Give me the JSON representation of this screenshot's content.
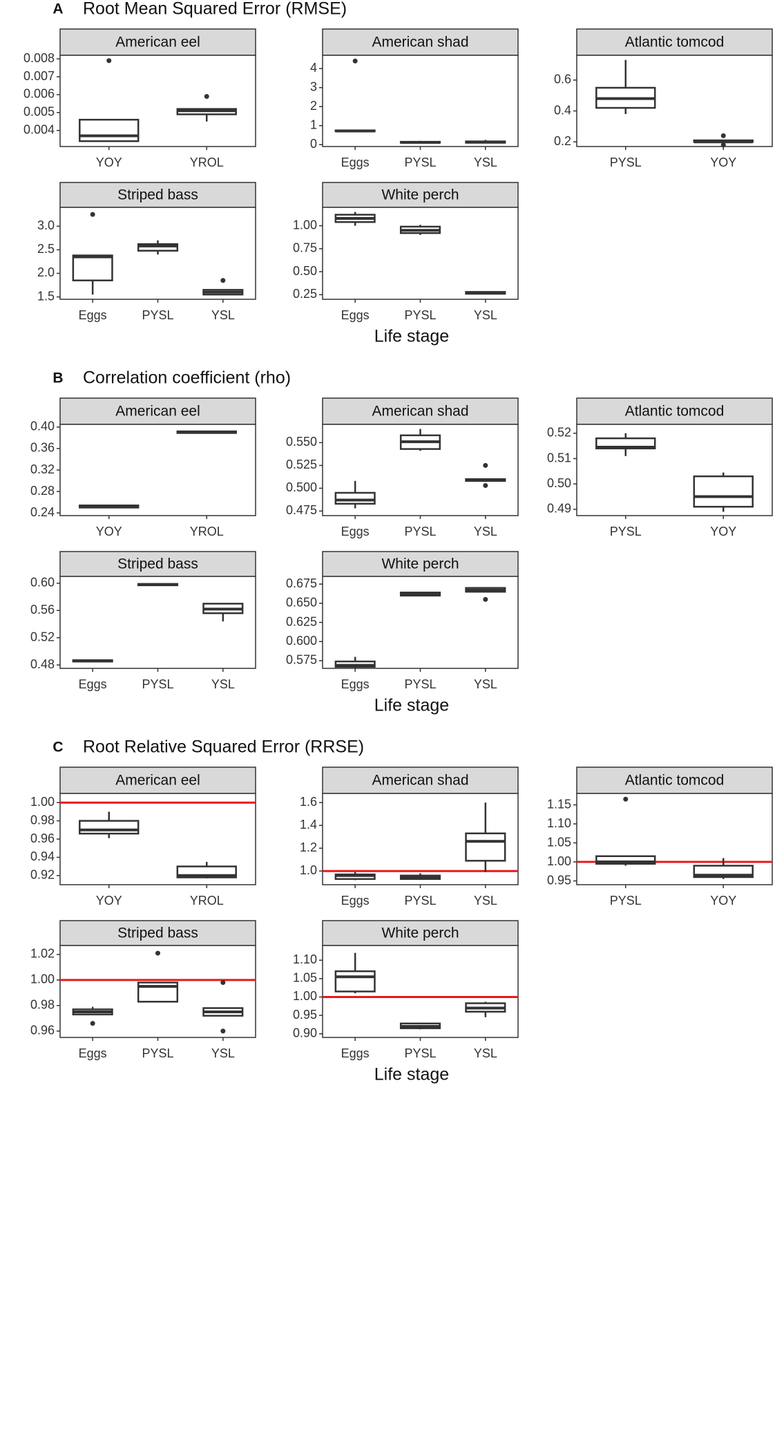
{
  "chart_data": [
    {
      "type": "box",
      "label": "A",
      "title": "Root Mean Squared Error (RMSE)",
      "xlabel": "Life stage",
      "box_color": "#333333",
      "strip_color": "#d9d9d9",
      "panels": [
        {
          "title": "American eel",
          "categories": [
            "YOY",
            "YROL"
          ],
          "ylim": [
            0.0031,
            0.0082
          ],
          "yticks": [
            0.004,
            0.005,
            0.006,
            0.007,
            0.008
          ],
          "boxes": [
            {
              "min": 0.0034,
              "q1": 0.0034,
              "median": 0.0037,
              "q3": 0.0046,
              "max": 0.0046,
              "outliers": [
                0.0079
              ]
            },
            {
              "min": 0.0045,
              "q1": 0.0049,
              "median": 0.0051,
              "q3": 0.0052,
              "max": 0.0052,
              "outliers": [
                0.0059
              ]
            }
          ]
        },
        {
          "title": "American shad",
          "categories": [
            "Eggs",
            "PYSL",
            "YSL"
          ],
          "ylim": [
            -0.1,
            4.7
          ],
          "yticks": [
            0,
            1,
            2,
            3,
            4
          ],
          "boxes": [
            {
              "min": 0.68,
              "q1": 0.7,
              "median": 0.72,
              "q3": 0.75,
              "max": 0.78,
              "outliers": [
                4.4
              ]
            },
            {
              "min": 0.08,
              "q1": 0.1,
              "median": 0.12,
              "q3": 0.15,
              "max": 0.2
            },
            {
              "min": 0.08,
              "q1": 0.1,
              "median": 0.13,
              "q3": 0.17,
              "max": 0.25
            }
          ]
        },
        {
          "title": "Atlantic tomcod",
          "categories": [
            "PYSL",
            "YOY"
          ],
          "ylim": [
            0.17,
            0.76
          ],
          "yticks": [
            0.2,
            0.4,
            0.6
          ],
          "boxes": [
            {
              "min": 0.38,
              "q1": 0.42,
              "median": 0.48,
              "q3": 0.55,
              "max": 0.73
            },
            {
              "min": 0.19,
              "q1": 0.2,
              "median": 0.2,
              "q3": 0.21,
              "max": 0.21,
              "outliers": [
                0.24,
                0.18
              ]
            }
          ]
        },
        {
          "title": "Striped bass",
          "categories": [
            "Eggs",
            "PYSL",
            "YSL"
          ],
          "ylim": [
            1.45,
            3.4
          ],
          "yticks": [
            1.5,
            {
              "value": 2,
              "label": "2.0"
            },
            2.5,
            {
              "value": 3,
              "label": "3.0"
            }
          ],
          "boxes": [
            {
              "min": 1.55,
              "q1": 1.85,
              "median": 2.35,
              "q3": 2.38,
              "max": 2.38,
              "outliers": [
                3.25
              ]
            },
            {
              "min": 2.4,
              "q1": 2.48,
              "median": 2.58,
              "q3": 2.62,
              "max": 2.7
            },
            {
              "min": 1.55,
              "q1": 1.55,
              "median": 1.6,
              "q3": 1.65,
              "max": 1.65,
              "outliers": [
                1.85
              ]
            }
          ]
        },
        {
          "title": "White perch",
          "categories": [
            "Eggs",
            "PYSL",
            "YSL"
          ],
          "ylim": [
            0.2,
            1.2
          ],
          "yticks": [
            0.25,
            {
              "value": 0.5,
              "label": "0.50"
            },
            0.75,
            {
              "value": 1,
              "label": "1.00"
            }
          ],
          "boxes": [
            {
              "min": 1.0,
              "q1": 1.04,
              "median": 1.08,
              "q3": 1.12,
              "max": 1.15
            },
            {
              "min": 0.9,
              "q1": 0.92,
              "median": 0.95,
              "q3": 0.99,
              "max": 1.01
            },
            {
              "min": 0.26,
              "q1": 0.26,
              "median": 0.27,
              "q3": 0.28,
              "max": 0.28
            }
          ]
        }
      ]
    },
    {
      "type": "box",
      "label": "B",
      "title": "Correlation coefficient (rho)",
      "xlabel": "Life stage",
      "box_color": "#333333",
      "strip_color": "#d9d9d9",
      "panels": [
        {
          "title": "American eel",
          "categories": [
            "YOY",
            "YROL"
          ],
          "ylim": [
            0.235,
            0.405
          ],
          "yticks": [
            0.24,
            0.28,
            0.32,
            0.36,
            {
              "value": 0.4,
              "label": "0.40"
            }
          ],
          "boxes": [
            {
              "min": 0.25,
              "q1": 0.25,
              "median": 0.252,
              "q3": 0.254,
              "max": 0.254
            },
            {
              "min": 0.388,
              "q1": 0.389,
              "median": 0.39,
              "q3": 0.392,
              "max": 0.392
            }
          ]
        },
        {
          "title": "American shad",
          "categories": [
            "Eggs",
            "PYSL",
            "YSL"
          ],
          "ylim": [
            0.47,
            0.57
          ],
          "yticks": [
            0.475,
            {
              "value": 0.5,
              "label": "0.500"
            },
            0.525,
            {
              "value": 0.55,
              "label": "0.550"
            }
          ],
          "boxes": [
            {
              "min": 0.478,
              "q1": 0.483,
              "median": 0.487,
              "q3": 0.495,
              "max": 0.508
            },
            {
              "min": 0.541,
              "q1": 0.543,
              "median": 0.551,
              "q3": 0.558,
              "max": 0.565
            },
            {
              "min": 0.507,
              "q1": 0.508,
              "median": 0.509,
              "q3": 0.51,
              "max": 0.51,
              "outliers": [
                0.525,
                0.503
              ]
            }
          ]
        },
        {
          "title": "Atlantic tomcod",
          "categories": [
            "PYSL",
            "YOY"
          ],
          "ylim": [
            0.4875,
            0.5235
          ],
          "yticks": [
            0.49,
            {
              "value": 0.5,
              "label": "0.50"
            },
            0.51,
            0.52
          ],
          "boxes": [
            {
              "min": 0.511,
              "q1": 0.514,
              "median": 0.5145,
              "q3": 0.518,
              "max": 0.52
            },
            {
              "min": 0.489,
              "q1": 0.491,
              "median": 0.495,
              "q3": 0.503,
              "max": 0.5045
            }
          ]
        },
        {
          "title": "Striped bass",
          "categories": [
            "Eggs",
            "PYSL",
            "YSL"
          ],
          "ylim": [
            0.475,
            0.61
          ],
          "yticks": [
            0.48,
            0.52,
            0.56,
            {
              "value": 0.6,
              "label": "0.60"
            }
          ],
          "boxes": [
            {
              "min": 0.484,
              "q1": 0.485,
              "median": 0.486,
              "q3": 0.487,
              "max": 0.488
            },
            {
              "min": 0.596,
              "q1": 0.597,
              "median": 0.598,
              "q3": 0.599,
              "max": 0.6
            },
            {
              "min": 0.544,
              "q1": 0.556,
              "median": 0.562,
              "q3": 0.57,
              "max": 0.57
            }
          ]
        },
        {
          "title": "White perch",
          "categories": [
            "Eggs",
            "PYSL",
            "YSL"
          ],
          "ylim": [
            0.565,
            0.685
          ],
          "yticks": [
            0.575,
            {
              "value": 0.6,
              "label": "0.600"
            },
            0.625,
            {
              "value": 0.65,
              "label": "0.650"
            },
            0.675
          ],
          "boxes": [
            {
              "min": 0.565,
              "q1": 0.567,
              "median": 0.569,
              "q3": 0.574,
              "max": 0.58
            },
            {
              "min": 0.659,
              "q1": 0.66,
              "median": 0.662,
              "q3": 0.664,
              "max": 0.665
            },
            {
              "min": 0.665,
              "q1": 0.665,
              "median": 0.667,
              "q3": 0.67,
              "max": 0.67,
              "outliers": [
                0.655
              ]
            }
          ]
        }
      ]
    },
    {
      "type": "box",
      "label": "C",
      "title": "Root Relative Squared Error (RRSE)",
      "xlabel": "Life stage",
      "box_color": "#333333",
      "strip_color": "#d9d9d9",
      "reference_line": {
        "value": 1,
        "color": "#e8191c"
      },
      "panels": [
        {
          "title": "American eel",
          "categories": [
            "YOY",
            "YROL"
          ],
          "ylim": [
            0.91,
            1.01
          ],
          "yticks": [
            {
              "value": 0.92,
              "label": "0.92"
            },
            0.94,
            0.96,
            0.98,
            {
              "value": 1,
              "label": "1.00"
            }
          ],
          "boxes": [
            {
              "min": 0.961,
              "q1": 0.966,
              "median": 0.97,
              "q3": 0.98,
              "max": 0.99
            },
            {
              "min": 0.917,
              "q1": 0.918,
              "median": 0.92,
              "q3": 0.93,
              "max": 0.935
            }
          ]
        },
        {
          "title": "American shad",
          "categories": [
            "Eggs",
            "PYSL",
            "YSL"
          ],
          "ylim": [
            0.88,
            1.68
          ],
          "yticks": [
            {
              "value": 1,
              "label": "1.0"
            },
            1.2,
            1.4,
            1.6
          ],
          "boxes": [
            {
              "min": 0.92,
              "q1": 0.93,
              "median": 0.96,
              "q3": 0.97,
              "max": 0.99
            },
            {
              "min": 0.93,
              "q1": 0.93,
              "median": 0.95,
              "q3": 0.96,
              "max": 0.98
            },
            {
              "min": 0.99,
              "q1": 1.09,
              "median": 1.26,
              "q3": 1.33,
              "max": 1.6
            }
          ]
        },
        {
          "title": "Atlantic tomcod",
          "categories": [
            "PYSL",
            "YOY"
          ],
          "ylim": [
            0.94,
            1.18
          ],
          "yticks": [
            0.95,
            {
              "value": 1,
              "label": "1.00"
            },
            1.05,
            {
              "value": 1.1,
              "label": "1.10"
            },
            1.15
          ],
          "boxes": [
            {
              "min": 0.99,
              "q1": 0.995,
              "median": 1.0,
              "q3": 1.015,
              "max": 1.015,
              "outliers": [
                1.165
              ]
            },
            {
              "min": 0.955,
              "q1": 0.96,
              "median": 0.965,
              "q3": 0.99,
              "max": 1.01
            }
          ]
        },
        {
          "title": "Striped bass",
          "categories": [
            "Eggs",
            "PYSL",
            "YSL"
          ],
          "ylim": [
            0.955,
            1.027
          ],
          "yticks": [
            0.96,
            0.98,
            {
              "value": 1,
              "label": "1.00"
            },
            1.02
          ],
          "boxes": [
            {
              "min": 0.973,
              "q1": 0.973,
              "median": 0.975,
              "q3": 0.977,
              "max": 0.979,
              "outliers": [
                0.966
              ]
            },
            {
              "min": 0.983,
              "q1": 0.983,
              "median": 0.995,
              "q3": 0.998,
              "max": 0.998,
              "outliers": [
                1.021
              ]
            },
            {
              "min": 0.972,
              "q1": 0.972,
              "median": 0.975,
              "q3": 0.978,
              "max": 0.978,
              "outliers": [
                0.998,
                0.96
              ]
            }
          ]
        },
        {
          "title": "White perch",
          "categories": [
            "Eggs",
            "PYSL",
            "YSL"
          ],
          "ylim": [
            0.89,
            1.14
          ],
          "yticks": [
            {
              "value": 0.9,
              "label": "0.90"
            },
            0.95,
            {
              "value": 1,
              "label": "1.00"
            },
            1.05,
            {
              "value": 1.1,
              "label": "1.10"
            }
          ],
          "boxes": [
            {
              "min": 1.01,
              "q1": 1.015,
              "median": 1.055,
              "q3": 1.07,
              "max": 1.12
            },
            {
              "min": 0.912,
              "q1": 0.915,
              "median": 0.92,
              "q3": 0.928,
              "max": 0.93
            },
            {
              "min": 0.945,
              "q1": 0.96,
              "median": 0.97,
              "q3": 0.983,
              "max": 0.987
            }
          ]
        }
      ]
    }
  ]
}
